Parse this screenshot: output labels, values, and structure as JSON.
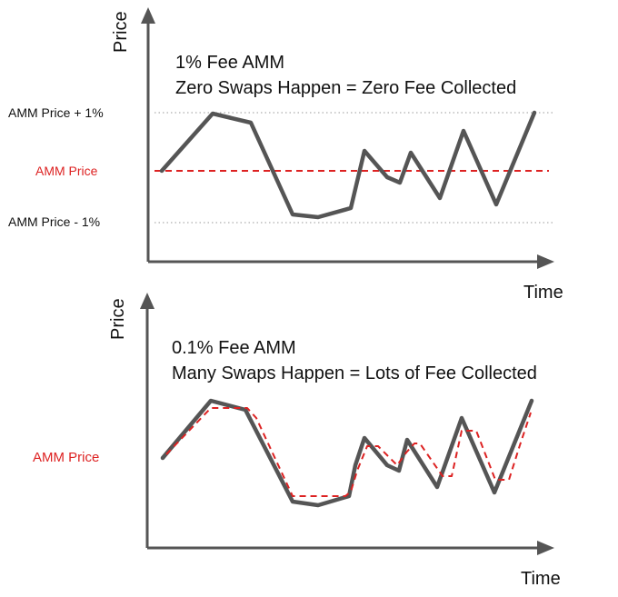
{
  "colors": {
    "axis": "#555555",
    "market": "#555555",
    "amm": "#dd2222",
    "grid": "#999999",
    "text": "#111111"
  },
  "top_panel": {
    "y_axis_label": "Price",
    "x_axis_label": "Time",
    "title_line1": "1% Fee AMM",
    "title_line2": "Zero Swaps Happen = Zero Fee Collected",
    "label_upper": "AMM Price + 1%",
    "label_amm": "AMM Price",
    "label_lower": "AMM Price - 1%"
  },
  "bottom_panel": {
    "y_axis_label": "Price",
    "x_axis_label": "Time",
    "title_line1": "0.1% Fee AMM",
    "title_line2": "Many Swaps Happen = Lots of Fee Collected",
    "label_amm": "AMM Price"
  }
}
